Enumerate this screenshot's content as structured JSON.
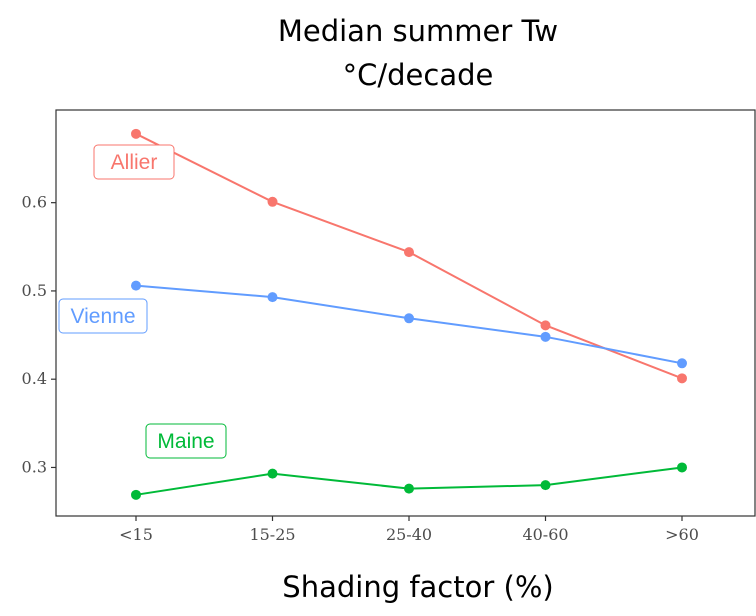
{
  "chart_data": {
    "type": "line",
    "title": "Median summer Tw",
    "subtitle": "°C/decade",
    "xlabel": "Shading factor (%)",
    "ylabel": "",
    "categories": [
      "<15",
      "15-25",
      "25-40",
      "40-60",
      ">60"
    ],
    "yticks": [
      0.3,
      0.4,
      0.5,
      0.6
    ],
    "ylim": [
      0.245,
      0.705
    ],
    "grid": false,
    "legend": "direct labels",
    "series": [
      {
        "name": "Allier",
        "color": "#f8766d",
        "values": [
          0.678,
          0.601,
          0.544,
          0.461,
          0.401
        ]
      },
      {
        "name": "Vienne",
        "color": "#619cff",
        "values": [
          0.506,
          0.493,
          0.469,
          0.448,
          0.418
        ]
      },
      {
        "name": "Maine",
        "color": "#00ba38",
        "values": [
          0.269,
          0.293,
          0.276,
          0.28,
          0.3
        ]
      }
    ]
  }
}
